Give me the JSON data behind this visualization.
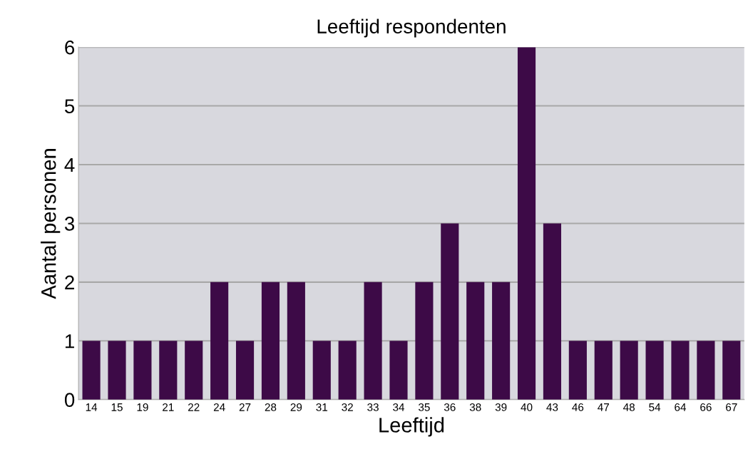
{
  "chart_data": {
    "type": "bar",
    "title": "Leeftijd respondenten",
    "xlabel": "Leeftijd",
    "ylabel": "Aantal personen",
    "categories": [
      "14",
      "15",
      "19",
      "21",
      "22",
      "24",
      "27",
      "28",
      "29",
      "31",
      "32",
      "33",
      "34",
      "35",
      "36",
      "38",
      "39",
      "40",
      "43",
      "46",
      "47",
      "48",
      "54",
      "64",
      "66",
      "67"
    ],
    "values": [
      1,
      1,
      1,
      1,
      1,
      2,
      1,
      2,
      2,
      1,
      1,
      2,
      1,
      2,
      3,
      2,
      2,
      6,
      3,
      1,
      1,
      1,
      1,
      1,
      1,
      1
    ],
    "color": "#3d0a47",
    "ylim": [
      0,
      6
    ],
    "yticks": [
      0,
      1,
      2,
      3,
      4,
      5,
      6
    ],
    "grid": "y",
    "legend": false
  }
}
